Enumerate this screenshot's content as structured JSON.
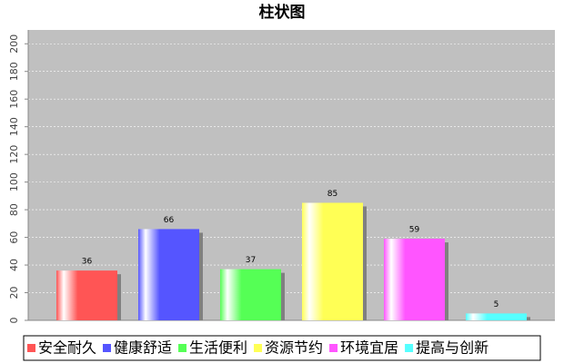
{
  "chart_data": {
    "type": "bar",
    "title": "柱状图",
    "categories": [
      "安全耐久",
      "健康舒适",
      "生活便利",
      "资源节约",
      "环境宜居",
      "提高与创新"
    ],
    "values": [
      36,
      66,
      37,
      85,
      59,
      5
    ],
    "colors": [
      "#ff5555",
      "#5555ff",
      "#55ff55",
      "#ffff55",
      "#ff55ff",
      "#55ffff"
    ],
    "ylim": [
      0,
      210
    ],
    "yticks": [
      0,
      20,
      40,
      60,
      80,
      100,
      120,
      140,
      160,
      180,
      200
    ],
    "grid": true,
    "legend": "bottom"
  }
}
